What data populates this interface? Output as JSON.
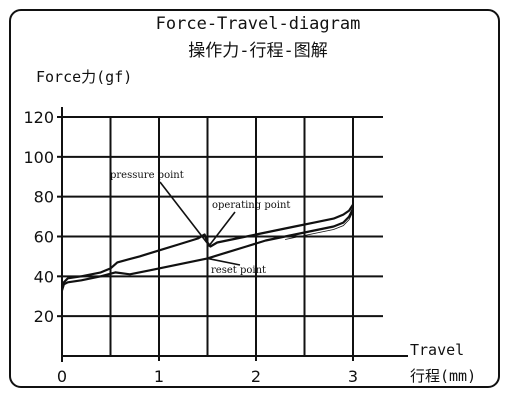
{
  "chart_data": {
    "type": "line",
    "title": "Force-Travel-diagram",
    "subtitle": "操作力-行程-图解",
    "ylabel": "Force力(gf)",
    "xlabel_line1": "Travel",
    "xlabel_line2": "行程(mm)",
    "xlim": [
      0,
      3
    ],
    "ylim": [
      0,
      120
    ],
    "xticks": [
      0,
      1,
      2,
      3
    ],
    "yticks": [
      20,
      40,
      60,
      80,
      100,
      120
    ],
    "x_grid": [
      0.5,
      1,
      1.5,
      2,
      2.5,
      3
    ],
    "y_grid": [
      20,
      40,
      60,
      80,
      100,
      120
    ],
    "grid": true,
    "line_color": "#111111",
    "series": [
      {
        "x": [
          0,
          0.02,
          0.06,
          0.2,
          0.4,
          0.5,
          0.57,
          0.8,
          1.0,
          1.2,
          1.4,
          1.47,
          1.5,
          1.53,
          1.6,
          1.8,
          2.0,
          2.2,
          2.4,
          2.6,
          2.8,
          2.9,
          2.96,
          3.0
        ],
        "values": [
          33,
          37,
          39,
          40,
          42,
          44,
          47,
          50,
          53,
          56,
          59,
          61,
          57,
          55,
          57,
          59,
          61,
          63,
          65,
          67,
          69,
          71,
          73,
          76
        ]
      },
      {
        "x": [
          0,
          0.02,
          0.06,
          0.2,
          0.4,
          0.55,
          0.7,
          0.9,
          1.1,
          1.3,
          1.5,
          1.7,
          1.9,
          2.1,
          2.3,
          2.5,
          2.7,
          2.8,
          2.9,
          2.96,
          3.0
        ],
        "values": [
          33,
          36,
          37,
          38,
          40,
          42,
          41,
          43,
          45,
          47,
          49,
          52,
          55,
          58,
          60,
          62,
          64,
          65,
          67,
          70,
          74
        ]
      }
    ],
    "annotations": [
      {
        "text": "pressure point",
        "point": [
          1.5,
          55
        ]
      },
      {
        "text": "operating point",
        "point": [
          1.5,
          55
        ]
      },
      {
        "text": "reset point",
        "point": [
          1.5,
          49
        ]
      }
    ]
  }
}
